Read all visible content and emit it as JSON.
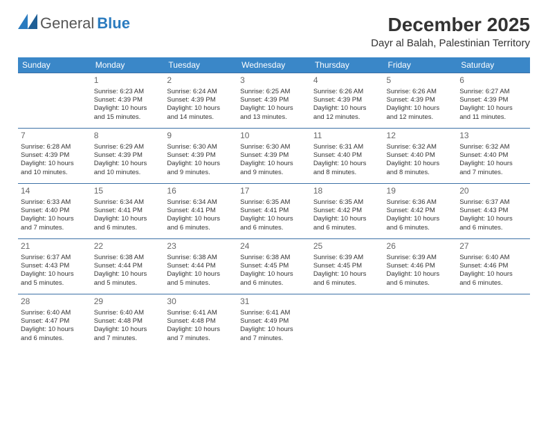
{
  "brand": {
    "part1": "General",
    "part2": "Blue"
  },
  "title": "December 2025",
  "location": "Dayr al Balah, Palestinian Territory",
  "colors": {
    "header_bg": "#3a87c8",
    "header_text": "#ffffff",
    "cell_border": "#3a6fa5",
    "text": "#333333",
    "daynum": "#666666",
    "brand_gray": "#555555",
    "brand_blue": "#2a7bbf",
    "background": "#ffffff"
  },
  "weekdays": [
    "Sunday",
    "Monday",
    "Tuesday",
    "Wednesday",
    "Thursday",
    "Friday",
    "Saturday"
  ],
  "weeks": [
    [
      null,
      {
        "n": "1",
        "sr": "Sunrise: 6:23 AM",
        "ss": "Sunset: 4:39 PM",
        "d1": "Daylight: 10 hours",
        "d2": "and 15 minutes."
      },
      {
        "n": "2",
        "sr": "Sunrise: 6:24 AM",
        "ss": "Sunset: 4:39 PM",
        "d1": "Daylight: 10 hours",
        "d2": "and 14 minutes."
      },
      {
        "n": "3",
        "sr": "Sunrise: 6:25 AM",
        "ss": "Sunset: 4:39 PM",
        "d1": "Daylight: 10 hours",
        "d2": "and 13 minutes."
      },
      {
        "n": "4",
        "sr": "Sunrise: 6:26 AM",
        "ss": "Sunset: 4:39 PM",
        "d1": "Daylight: 10 hours",
        "d2": "and 12 minutes."
      },
      {
        "n": "5",
        "sr": "Sunrise: 6:26 AM",
        "ss": "Sunset: 4:39 PM",
        "d1": "Daylight: 10 hours",
        "d2": "and 12 minutes."
      },
      {
        "n": "6",
        "sr": "Sunrise: 6:27 AM",
        "ss": "Sunset: 4:39 PM",
        "d1": "Daylight: 10 hours",
        "d2": "and 11 minutes."
      }
    ],
    [
      {
        "n": "7",
        "sr": "Sunrise: 6:28 AM",
        "ss": "Sunset: 4:39 PM",
        "d1": "Daylight: 10 hours",
        "d2": "and 10 minutes."
      },
      {
        "n": "8",
        "sr": "Sunrise: 6:29 AM",
        "ss": "Sunset: 4:39 PM",
        "d1": "Daylight: 10 hours",
        "d2": "and 10 minutes."
      },
      {
        "n": "9",
        "sr": "Sunrise: 6:30 AM",
        "ss": "Sunset: 4:39 PM",
        "d1": "Daylight: 10 hours",
        "d2": "and 9 minutes."
      },
      {
        "n": "10",
        "sr": "Sunrise: 6:30 AM",
        "ss": "Sunset: 4:39 PM",
        "d1": "Daylight: 10 hours",
        "d2": "and 9 minutes."
      },
      {
        "n": "11",
        "sr": "Sunrise: 6:31 AM",
        "ss": "Sunset: 4:40 PM",
        "d1": "Daylight: 10 hours",
        "d2": "and 8 minutes."
      },
      {
        "n": "12",
        "sr": "Sunrise: 6:32 AM",
        "ss": "Sunset: 4:40 PM",
        "d1": "Daylight: 10 hours",
        "d2": "and 8 minutes."
      },
      {
        "n": "13",
        "sr": "Sunrise: 6:32 AM",
        "ss": "Sunset: 4:40 PM",
        "d1": "Daylight: 10 hours",
        "d2": "and 7 minutes."
      }
    ],
    [
      {
        "n": "14",
        "sr": "Sunrise: 6:33 AM",
        "ss": "Sunset: 4:40 PM",
        "d1": "Daylight: 10 hours",
        "d2": "and 7 minutes."
      },
      {
        "n": "15",
        "sr": "Sunrise: 6:34 AM",
        "ss": "Sunset: 4:41 PM",
        "d1": "Daylight: 10 hours",
        "d2": "and 6 minutes."
      },
      {
        "n": "16",
        "sr": "Sunrise: 6:34 AM",
        "ss": "Sunset: 4:41 PM",
        "d1": "Daylight: 10 hours",
        "d2": "and 6 minutes."
      },
      {
        "n": "17",
        "sr": "Sunrise: 6:35 AM",
        "ss": "Sunset: 4:41 PM",
        "d1": "Daylight: 10 hours",
        "d2": "and 6 minutes."
      },
      {
        "n": "18",
        "sr": "Sunrise: 6:35 AM",
        "ss": "Sunset: 4:42 PM",
        "d1": "Daylight: 10 hours",
        "d2": "and 6 minutes."
      },
      {
        "n": "19",
        "sr": "Sunrise: 6:36 AM",
        "ss": "Sunset: 4:42 PM",
        "d1": "Daylight: 10 hours",
        "d2": "and 6 minutes."
      },
      {
        "n": "20",
        "sr": "Sunrise: 6:37 AM",
        "ss": "Sunset: 4:43 PM",
        "d1": "Daylight: 10 hours",
        "d2": "and 6 minutes."
      }
    ],
    [
      {
        "n": "21",
        "sr": "Sunrise: 6:37 AM",
        "ss": "Sunset: 4:43 PM",
        "d1": "Daylight: 10 hours",
        "d2": "and 5 minutes."
      },
      {
        "n": "22",
        "sr": "Sunrise: 6:38 AM",
        "ss": "Sunset: 4:44 PM",
        "d1": "Daylight: 10 hours",
        "d2": "and 5 minutes."
      },
      {
        "n": "23",
        "sr": "Sunrise: 6:38 AM",
        "ss": "Sunset: 4:44 PM",
        "d1": "Daylight: 10 hours",
        "d2": "and 5 minutes."
      },
      {
        "n": "24",
        "sr": "Sunrise: 6:38 AM",
        "ss": "Sunset: 4:45 PM",
        "d1": "Daylight: 10 hours",
        "d2": "and 6 minutes."
      },
      {
        "n": "25",
        "sr": "Sunrise: 6:39 AM",
        "ss": "Sunset: 4:45 PM",
        "d1": "Daylight: 10 hours",
        "d2": "and 6 minutes."
      },
      {
        "n": "26",
        "sr": "Sunrise: 6:39 AM",
        "ss": "Sunset: 4:46 PM",
        "d1": "Daylight: 10 hours",
        "d2": "and 6 minutes."
      },
      {
        "n": "27",
        "sr": "Sunrise: 6:40 AM",
        "ss": "Sunset: 4:46 PM",
        "d1": "Daylight: 10 hours",
        "d2": "and 6 minutes."
      }
    ],
    [
      {
        "n": "28",
        "sr": "Sunrise: 6:40 AM",
        "ss": "Sunset: 4:47 PM",
        "d1": "Daylight: 10 hours",
        "d2": "and 6 minutes."
      },
      {
        "n": "29",
        "sr": "Sunrise: 6:40 AM",
        "ss": "Sunset: 4:48 PM",
        "d1": "Daylight: 10 hours",
        "d2": "and 7 minutes."
      },
      {
        "n": "30",
        "sr": "Sunrise: 6:41 AM",
        "ss": "Sunset: 4:48 PM",
        "d1": "Daylight: 10 hours",
        "d2": "and 7 minutes."
      },
      {
        "n": "31",
        "sr": "Sunrise: 6:41 AM",
        "ss": "Sunset: 4:49 PM",
        "d1": "Daylight: 10 hours",
        "d2": "and 7 minutes."
      },
      null,
      null,
      null
    ]
  ]
}
